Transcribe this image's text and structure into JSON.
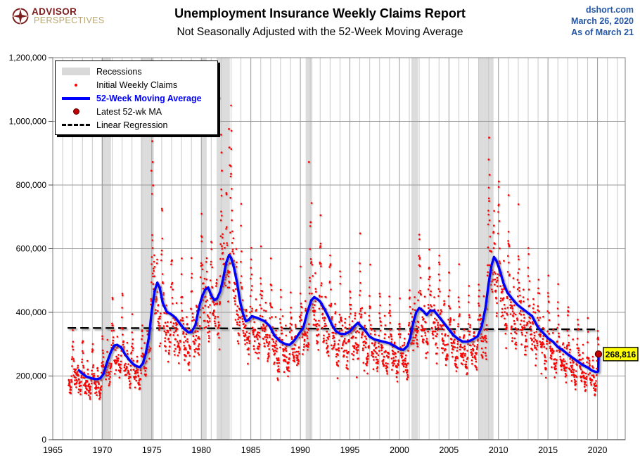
{
  "header": {
    "logo": {
      "line1": "ADVISOR",
      "line2": "PERSPECTIVES",
      "icon": "compass-star-icon",
      "color_primary": "#7B1E1E",
      "color_secondary": "#B7A671"
    },
    "title": "Unemployment Insurance Weekly Claims Report",
    "subtitle": "Not Seasonally Adjusted with the 52-Week Moving Average",
    "source": {
      "site": "dshort.com",
      "date": "March 26, 2020",
      "asof": "As of March 21",
      "color": "#2356A4"
    }
  },
  "legend": {
    "items": [
      {
        "label": "Recessions",
        "swatch": "band",
        "color": "#D9D9D9",
        "bold": false,
        "text_color": "#000000"
      },
      {
        "label": "Initial Weekly Claims",
        "swatch": "dot-small",
        "color": "#FF0000",
        "bold": false,
        "text_color": "#000000"
      },
      {
        "label": "52-Week Moving Average",
        "swatch": "line",
        "color": "#0000FF",
        "bold": true,
        "text_color": "#0000FF"
      },
      {
        "label": "Latest 52-wk MA",
        "swatch": "dot-large",
        "color": "#C00000",
        "bold": false,
        "text_color": "#000000"
      },
      {
        "label": "Linear Regression",
        "swatch": "dash",
        "color": "#000000",
        "bold": false,
        "text_color": "#000000"
      }
    ]
  },
  "colors": {
    "scatter": "#FF0000",
    "ma_line": "#0000FF",
    "latest_dot": "#C00000",
    "latest_dot_edge": "#600000",
    "regression": "#000000",
    "band": "#DCDCDC",
    "grid_minor": "#C9C9C9",
    "grid_major": "#999999",
    "plot_border": "#808080",
    "axis_line": "#4D4D4D",
    "annotation_bg": "#FFFF00",
    "annotation_border": "#000000"
  },
  "chart_data": {
    "type": "scatter",
    "title": "Unemployment Insurance Weekly Claims Report",
    "subtitle": "Not Seasonally Adjusted with the 52-Week Moving Average",
    "xlabel": "",
    "ylabel": "",
    "grid": {
      "horizontal_interval": 200000,
      "vertical_minor_years": 1,
      "vertical_major_years": 5
    },
    "x_axis": {
      "range": [
        1965,
        2022.8
      ],
      "ticks": [
        1965,
        1970,
        1975,
        1980,
        1985,
        1990,
        1995,
        2000,
        2005,
        2010,
        2015,
        2020
      ]
    },
    "y_axis": {
      "range": [
        0,
        1200000
      ],
      "ticks": [
        {
          "value": 0,
          "label": "0"
        },
        {
          "value": 200000,
          "label": "200,000"
        },
        {
          "value": 400000,
          "label": "400,000"
        },
        {
          "value": 600000,
          "label": "600,000"
        },
        {
          "value": 800000,
          "label": "800,000"
        },
        {
          "value": 1000000,
          "label": "1,000,000"
        },
        {
          "value": 1200000,
          "label": "1,200,000"
        }
      ]
    },
    "recessions": [
      [
        1969.92,
        1970.88
      ],
      [
        1973.88,
        1975.21
      ],
      [
        1980.04,
        1980.54
      ],
      [
        1981.54,
        1982.88
      ],
      [
        1990.54,
        1991.21
      ],
      [
        2001.21,
        2001.88
      ],
      [
        2007.96,
        2009.5
      ]
    ],
    "regression": {
      "name": "Linear Regression",
      "points": [
        [
          1966.5,
          351000
        ],
        [
          2019.85,
          346500
        ]
      ]
    },
    "latest": {
      "name": "Latest 52-wk MA",
      "year": 2020.1,
      "value": 268816,
      "label": "268,816"
    },
    "moving_average": {
      "name": "52-Week Moving Average",
      "points": [
        [
          1967.65,
          218000
        ],
        [
          1968.0,
          207000
        ],
        [
          1968.4,
          198000
        ],
        [
          1968.9,
          193000
        ],
        [
          1969.4,
          190000
        ],
        [
          1969.8,
          193000
        ],
        [
          1970.1,
          205000
        ],
        [
          1970.5,
          245000
        ],
        [
          1970.9,
          278000
        ],
        [
          1971.2,
          296000
        ],
        [
          1971.5,
          298000
        ],
        [
          1971.9,
          290000
        ],
        [
          1972.3,
          268000
        ],
        [
          1972.7,
          252000
        ],
        [
          1973.1,
          238000
        ],
        [
          1973.5,
          230000
        ],
        [
          1973.8,
          228000
        ],
        [
          1974.1,
          240000
        ],
        [
          1974.4,
          272000
        ],
        [
          1974.7,
          320000
        ],
        [
          1975.0,
          405000
        ],
        [
          1975.3,
          470000
        ],
        [
          1975.55,
          493000
        ],
        [
          1975.8,
          477000
        ],
        [
          1976.1,
          430000
        ],
        [
          1976.5,
          402000
        ],
        [
          1977.0,
          393000
        ],
        [
          1977.4,
          383000
        ],
        [
          1977.8,
          366000
        ],
        [
          1978.2,
          350000
        ],
        [
          1978.7,
          337000
        ],
        [
          1979.0,
          338000
        ],
        [
          1979.4,
          360000
        ],
        [
          1979.8,
          420000
        ],
        [
          1980.1,
          452000
        ],
        [
          1980.4,
          472000
        ],
        [
          1980.7,
          478000
        ],
        [
          1981.0,
          453000
        ],
        [
          1981.3,
          438000
        ],
        [
          1981.6,
          444000
        ],
        [
          1981.9,
          465000
        ],
        [
          1982.2,
          505000
        ],
        [
          1982.5,
          555000
        ],
        [
          1982.8,
          580000
        ],
        [
          1983.0,
          572000
        ],
        [
          1983.3,
          540000
        ],
        [
          1983.6,
          495000
        ],
        [
          1983.9,
          435000
        ],
        [
          1984.2,
          396000
        ],
        [
          1984.5,
          372000
        ],
        [
          1984.8,
          377000
        ],
        [
          1985.1,
          388000
        ],
        [
          1985.5,
          384000
        ],
        [
          1986.0,
          378000
        ],
        [
          1986.4,
          372000
        ],
        [
          1986.9,
          357000
        ],
        [
          1987.4,
          326000
        ],
        [
          1988.0,
          308000
        ],
        [
          1988.5,
          300000
        ],
        [
          1988.9,
          298000
        ],
        [
          1989.4,
          312000
        ],
        [
          1989.9,
          335000
        ],
        [
          1990.3,
          352000
        ],
        [
          1990.7,
          400000
        ],
        [
          1991.1,
          438000
        ],
        [
          1991.4,
          448000
        ],
        [
          1991.7,
          442000
        ],
        [
          1992.0,
          434000
        ],
        [
          1992.4,
          412000
        ],
        [
          1992.8,
          388000
        ],
        [
          1993.2,
          360000
        ],
        [
          1993.6,
          340000
        ],
        [
          1994.0,
          333000
        ],
        [
          1994.5,
          332000
        ],
        [
          1995.0,
          340000
        ],
        [
          1995.4,
          355000
        ],
        [
          1995.8,
          367000
        ],
        [
          1996.2,
          354000
        ],
        [
          1996.6,
          340000
        ],
        [
          1997.0,
          323000
        ],
        [
          1997.5,
          315000
        ],
        [
          1998.0,
          311000
        ],
        [
          1998.5,
          307000
        ],
        [
          1999.0,
          303000
        ],
        [
          1999.5,
          294000
        ],
        [
          2000.0,
          285000
        ],
        [
          2000.4,
          282000
        ],
        [
          2000.8,
          294000
        ],
        [
          2001.1,
          322000
        ],
        [
          2001.4,
          368000
        ],
        [
          2001.7,
          400000
        ],
        [
          2002.0,
          414000
        ],
        [
          2002.4,
          404000
        ],
        [
          2002.75,
          392000
        ],
        [
          2003.1,
          405000
        ],
        [
          2003.5,
          405000
        ],
        [
          2003.9,
          390000
        ],
        [
          2004.4,
          370000
        ],
        [
          2004.9,
          350000
        ],
        [
          2005.4,
          330000
        ],
        [
          2005.9,
          317000
        ],
        [
          2006.4,
          308000
        ],
        [
          2006.9,
          308000
        ],
        [
          2007.4,
          315000
        ],
        [
          2007.9,
          325000
        ],
        [
          2008.3,
          355000
        ],
        [
          2008.7,
          415000
        ],
        [
          2009.0,
          490000
        ],
        [
          2009.3,
          548000
        ],
        [
          2009.55,
          574000
        ],
        [
          2009.8,
          562000
        ],
        [
          2010.1,
          536000
        ],
        [
          2010.5,
          492000
        ],
        [
          2010.9,
          462000
        ],
        [
          2011.4,
          442000
        ],
        [
          2011.9,
          424000
        ],
        [
          2012.4,
          412000
        ],
        [
          2012.9,
          400000
        ],
        [
          2013.4,
          388000
        ],
        [
          2013.7,
          370000
        ],
        [
          2014.0,
          352000
        ],
        [
          2014.5,
          336000
        ],
        [
          2015.0,
          319000
        ],
        [
          2015.5,
          308000
        ],
        [
          2016.0,
          291000
        ],
        [
          2016.5,
          281000
        ],
        [
          2017.0,
          268000
        ],
        [
          2017.5,
          257000
        ],
        [
          2018.0,
          246000
        ],
        [
          2018.5,
          235000
        ],
        [
          2019.0,
          227000
        ],
        [
          2019.4,
          218000
        ],
        [
          2019.8,
          213000
        ],
        [
          2020.0,
          213000
        ],
        [
          2020.07,
          215000
        ],
        [
          2020.1,
          268816
        ]
      ]
    },
    "scatter": {
      "name": "Initial Weekly Claims",
      "generated": true,
      "seed": 20200326,
      "start": 1966.6,
      "end": 2020.14,
      "per_year": 52,
      "seasonal": [
        1.42,
        1.52,
        1.38,
        1.28,
        1.18,
        1.12,
        1.08,
        1.05,
        1.02,
        0.98,
        0.95,
        0.93,
        0.92,
        0.93,
        0.9,
        0.88,
        0.87,
        0.86,
        0.84,
        0.83,
        0.83,
        0.84,
        0.86,
        0.88,
        0.9,
        0.92,
        1.06,
        1.1,
        1.04,
        0.98,
        0.92,
        0.88,
        0.85,
        0.83,
        0.81,
        0.79,
        0.77,
        0.76,
        0.75,
        0.74,
        0.74,
        0.75,
        0.76,
        0.78,
        0.82,
        0.86,
        0.9,
        0.95,
        1.02,
        1.1,
        1.2,
        1.32
      ],
      "noise": 0.16,
      "min_value": 128000,
      "max_value": 1050000,
      "recession_boosts": [
        [
          1969.95,
          1970.6,
          1.06
        ],
        [
          1974.6,
          1975.4,
          1.14
        ],
        [
          1980.1,
          1980.7,
          1.06
        ],
        [
          1981.9,
          1983.3,
          1.13
        ],
        [
          1990.75,
          1991.4,
          1.08
        ],
        [
          2001.3,
          2002.1,
          1.04
        ],
        [
          2008.8,
          2009.8,
          1.1
        ]
      ],
      "outliers": [
        [
          1974.17,
          969000
        ],
        [
          1975.0,
          1004000
        ],
        [
          1975.05,
          938000
        ],
        [
          1975.09,
          872000
        ],
        [
          1974.96,
          845000
        ],
        [
          1975.13,
          799000
        ],
        [
          1981.83,
          1073000
        ],
        [
          1982.0,
          958000
        ],
        [
          1982.04,
          902000
        ],
        [
          1982.08,
          845000
        ],
        [
          1982.79,
          976000
        ],
        [
          1982.83,
          918000
        ],
        [
          1982.87,
          862000
        ],
        [
          1983.0,
          835000
        ],
        [
          1990.87,
          872000
        ],
        [
          1992.04,
          705000
        ],
        [
          1996.04,
          648000
        ],
        [
          2009.02,
          880000
        ],
        [
          2009.06,
          949000
        ],
        [
          2009.1,
          832000
        ],
        [
          2010.04,
          811000
        ],
        [
          2011.03,
          768000
        ]
      ]
    }
  }
}
